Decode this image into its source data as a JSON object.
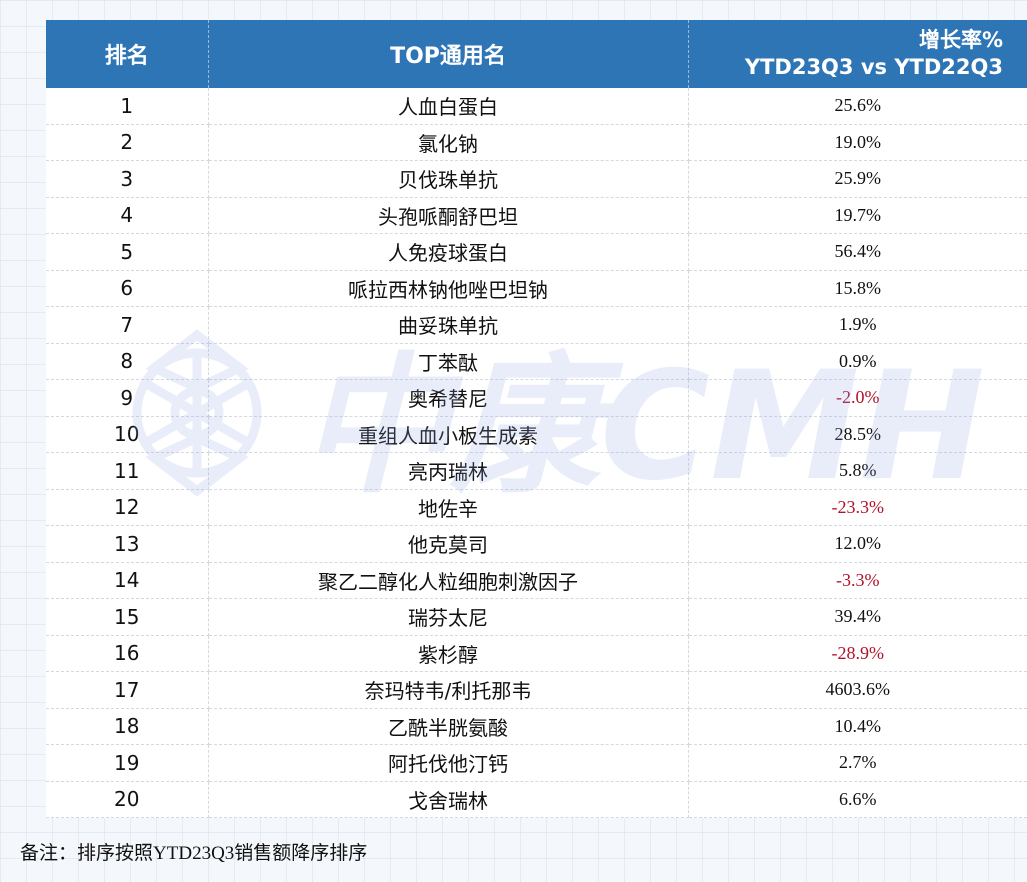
{
  "header": {
    "rank": "排名",
    "name": "TOP通用名",
    "rate_line1": "增长率%",
    "rate_line2": "YTD23Q3 vs YTD22Q3"
  },
  "rows": [
    {
      "rank": "1",
      "name": "人血白蛋白",
      "rate": "25.6%",
      "negative": false
    },
    {
      "rank": "2",
      "name": "氯化钠",
      "rate": "19.0%",
      "negative": false
    },
    {
      "rank": "3",
      "name": "贝伐珠单抗",
      "rate": "25.9%",
      "negative": false
    },
    {
      "rank": "4",
      "name": "头孢哌酮舒巴坦",
      "rate": "19.7%",
      "negative": false
    },
    {
      "rank": "5",
      "name": "人免疫球蛋白",
      "rate": "56.4%",
      "negative": false
    },
    {
      "rank": "6",
      "name": "哌拉西林钠他唑巴坦钠",
      "rate": "15.8%",
      "negative": false
    },
    {
      "rank": "7",
      "name": "曲妥珠单抗",
      "rate": "1.9%",
      "negative": false
    },
    {
      "rank": "8",
      "name": "丁苯酞",
      "rate": "0.9%",
      "negative": false
    },
    {
      "rank": "9",
      "name": "奥希替尼",
      "rate": "-2.0%",
      "negative": true
    },
    {
      "rank": "10",
      "name": "重组人血小板生成素",
      "rate": "28.5%",
      "negative": false
    },
    {
      "rank": "11",
      "name": "亮丙瑞林",
      "rate": "5.8%",
      "negative": false
    },
    {
      "rank": "12",
      "name": "地佐辛",
      "rate": "-23.3%",
      "negative": true
    },
    {
      "rank": "13",
      "name": "他克莫司",
      "rate": "12.0%",
      "negative": false
    },
    {
      "rank": "14",
      "name": "聚乙二醇化人粒细胞刺激因子",
      "rate": "-3.3%",
      "negative": true
    },
    {
      "rank": "15",
      "name": "瑞芬太尼",
      "rate": "39.4%",
      "negative": false
    },
    {
      "rank": "16",
      "name": "紫杉醇",
      "rate": "-28.9%",
      "negative": true
    },
    {
      "rank": "17",
      "name": "奈玛特韦/利托那韦",
      "rate": "4603.6%",
      "negative": false
    },
    {
      "rank": "18",
      "name": "乙酰半胱氨酸",
      "rate": "10.4%",
      "negative": false
    },
    {
      "rank": "19",
      "name": "阿托伐他汀钙",
      "rate": "2.7%",
      "negative": false
    },
    {
      "rank": "20",
      "name": "戈舍瑞林",
      "rate": "6.6%",
      "negative": false
    }
  ],
  "note": {
    "label": "备注：",
    "text": "排序按照YTD23Q3销售额降序排序"
  },
  "watermark": {
    "text": "中康CMH",
    "icon": "snowflake-logo-icon"
  },
  "colors": {
    "header_bg": "#2e75b6",
    "negative": "#b0132a",
    "watermark": "#8fa8e6"
  }
}
